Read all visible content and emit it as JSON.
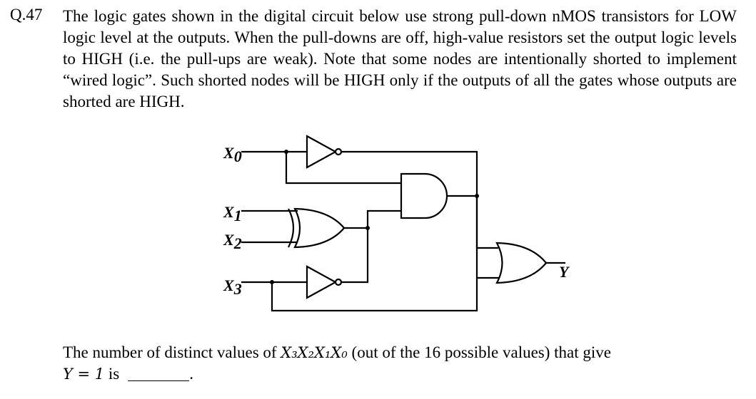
{
  "question": {
    "number": "Q.47",
    "text": "The logic gates shown in the digital circuit below use strong pull-down nMOS transistors for LOW logic level at the outputs. When the pull-downs are off, high-value resistors set the output logic levels to HIGH (i.e. the pull-ups are weak). Note that some nodes are intentionally shorted to implement “wired logic”. Such shorted nodes will be HIGH only if the outputs of all the gates whose outputs are shorted are HIGH."
  },
  "circuit": {
    "inputs": [
      {
        "base": "X",
        "sub": "0"
      },
      {
        "base": "X",
        "sub": "1"
      },
      {
        "base": "X",
        "sub": "2"
      },
      {
        "base": "X",
        "sub": "3"
      }
    ],
    "output": "Y",
    "gates": [
      "NOT",
      "XOR",
      "NOT",
      "AND",
      "OR"
    ]
  },
  "footer": {
    "line1_pre": "The number of distinct values of ",
    "line1_math": "X₃X₂X₁X₀",
    "line1_post": " (out of the 16 possible values) that give",
    "line2_math": "Y = 1",
    "line2_post": " is",
    "line2_end": "."
  }
}
